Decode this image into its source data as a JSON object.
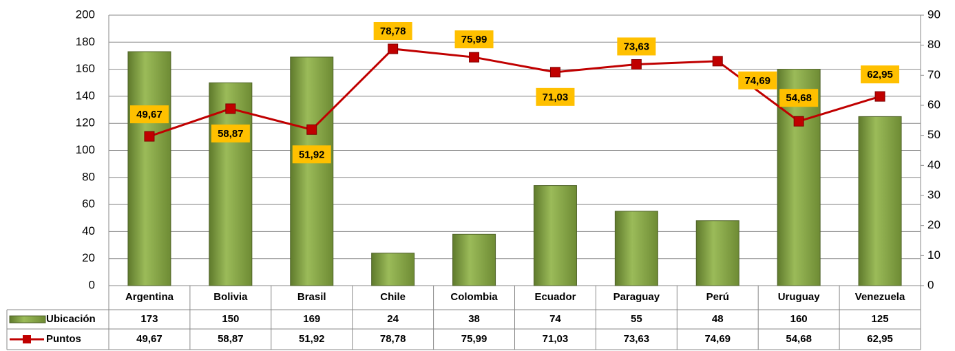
{
  "chart_data": {
    "type": "bar",
    "categories": [
      "Argentina",
      "Bolivia",
      "Brasil",
      "Chile",
      "Colombia",
      "Ecuador",
      "Paraguay",
      "Perú",
      "Uruguay",
      "Venezuela"
    ],
    "series": [
      {
        "name": "Ubicación",
        "type": "bar",
        "color": "#77933c",
        "values": [
          173,
          150,
          169,
          24,
          38,
          74,
          55,
          48,
          160,
          125
        ]
      },
      {
        "name": "Puntos",
        "type": "line",
        "axis": "y2",
        "color": "#c00000",
        "values": [
          49.67,
          58.87,
          51.92,
          78.78,
          75.99,
          71.03,
          73.63,
          74.69,
          54.68,
          62.95
        ],
        "value_labels": [
          "49,67",
          "58,87",
          "51,92",
          "78,78",
          "75,99",
          "71,03",
          "73,63",
          "74,69",
          "54,68",
          "62,95"
        ]
      }
    ],
    "ylim": [
      0,
      200
    ],
    "yticks": [
      0,
      20,
      40,
      60,
      80,
      100,
      120,
      140,
      160,
      180,
      200
    ],
    "y2lim": [
      0,
      90
    ],
    "y2ticks": [
      0,
      10,
      20,
      30,
      40,
      50,
      60,
      70,
      80,
      90
    ],
    "grid": true,
    "data_table": true
  }
}
